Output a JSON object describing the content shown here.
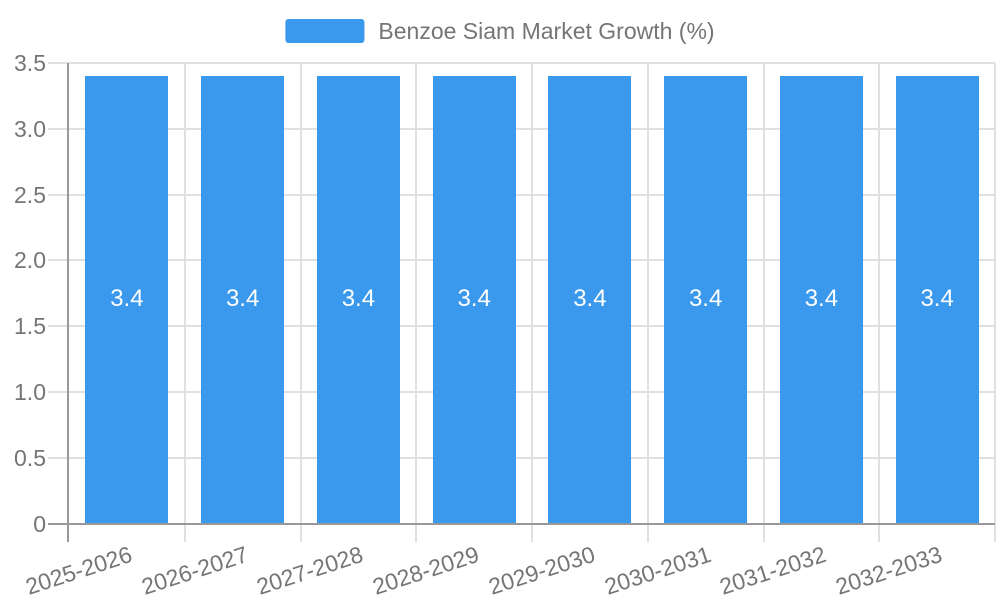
{
  "chart_data": {
    "type": "bar",
    "title": "",
    "xlabel": "",
    "ylabel": "",
    "categories": [
      "2025-2026",
      "2026-2027",
      "2027-2028",
      "2028-2029",
      "2029-2030",
      "2030-2031",
      "2031-2032",
      "2032-2033"
    ],
    "series": [
      {
        "name": "Benzoe Siam Market Growth (%)",
        "values": [
          3.4,
          3.4,
          3.4,
          3.4,
          3.4,
          3.4,
          3.4,
          3.4
        ]
      }
    ],
    "bar_value_labels": [
      "3.4",
      "3.4",
      "3.4",
      "3.4",
      "3.4",
      "3.4",
      "3.4",
      "3.4"
    ],
    "ylim": [
      0,
      3.5
    ],
    "ytick_values": [
      0,
      0.5,
      1,
      1.5,
      2,
      2.5,
      3,
      3.5
    ],
    "ytick_labels": [
      "0",
      "0.5",
      "1.0",
      "1.5",
      "2.0",
      "2.5",
      "3.0",
      "3.5"
    ],
    "grid": true,
    "legend_position": "top-center",
    "x_label_rotation_deg": 18,
    "colors": {
      "bar": "#3a99ec",
      "bar_label": "#ffffff",
      "axis_line": "#999999",
      "gridline": "#e0e0e0",
      "text": "#757575",
      "background": "#ffffff"
    }
  }
}
